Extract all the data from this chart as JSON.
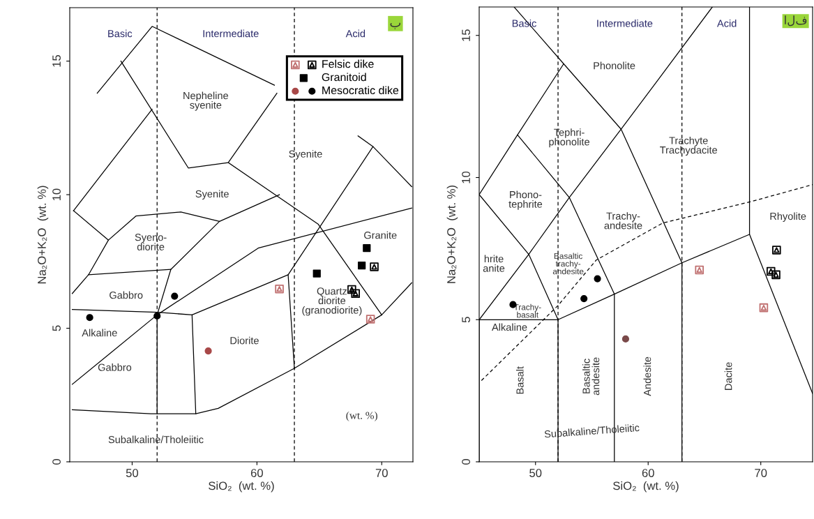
{
  "chart_data": [
    {
      "type": "scatter",
      "xlabel": "SiO₂  (wt. %)",
      "ylabel": "Na₂O+K₂O  (wt. %)",
      "xlim": [
        45,
        72.5
      ],
      "ylim": [
        0,
        17
      ],
      "xticks": [
        50,
        60,
        70
      ],
      "yticks": [
        0,
        5,
        10,
        15
      ],
      "grid": false,
      "legend": "top right",
      "ref_lines": [
        {
          "axis": "x",
          "value": 52,
          "color": "#000000",
          "line_style": "dashed"
        },
        {
          "axis": "x",
          "value": 63,
          "color": "#000000",
          "line_style": "dashed"
        }
      ],
      "annotations": [
        "Basic",
        "Intermediate",
        "Acid",
        "ب",
        "Nepheline\nsyenite",
        "Syenite",
        "Syenite",
        "Syeno-\ndiorite",
        "Gabbro",
        "Alkaline",
        "Gabbro",
        "Diorite",
        "Quartz\ndiorite\n(granodiorite)",
        "Granite",
        "(wt. %)",
        "Subalkaline/Tholeiitic"
      ],
      "series": [
        {
          "type": "line",
          "color": "#000000",
          "x": [
            47.2,
            51.6,
            61.4
          ],
          "values": [
            13.8,
            16.3,
            14.1
          ]
        },
        {
          "type": "line",
          "color": "#000000",
          "x": [
            49.1,
            54.5,
            57.7,
            61.6
          ],
          "values": [
            15.0,
            11.0,
            11.2,
            13.8
          ]
        },
        {
          "type": "line",
          "color": "#000000",
          "x": [
            45.3,
            51.6
          ],
          "values": [
            9.4,
            13.2
          ]
        },
        {
          "type": "line",
          "color": "#000000",
          "x": [
            45.3,
            48.1,
            46.5,
            45.2
          ],
          "values": [
            9.4,
            8.3,
            7.0,
            6.3
          ]
        },
        {
          "type": "line",
          "color": "#000000",
          "x": [
            48.1,
            50.3,
            53.9,
            57.0,
            61.8
          ],
          "values": [
            8.3,
            9.2,
            9.35,
            9.0,
            10.0
          ]
        },
        {
          "type": "line",
          "color": "#000000",
          "x": [
            57.7,
            64.9,
            70.0
          ],
          "values": [
            11.2,
            8.9,
            5.5
          ]
        },
        {
          "type": "line",
          "color": "#000000",
          "x": [
            46.5,
            53.1
          ],
          "values": [
            7.0,
            7.2
          ]
        },
        {
          "type": "line",
          "color": "#000000",
          "x": [
            52.0,
            53.1,
            57.0
          ],
          "values": [
            5.5,
            7.2,
            9.0
          ]
        },
        {
          "type": "line",
          "color": "#000000",
          "x": [
            45.2,
            52.0,
            54.8,
            62.5,
            63.0
          ],
          "values": [
            5.7,
            5.6,
            5.5,
            7.0,
            3.5
          ]
        },
        {
          "type": "line",
          "color": "#000000",
          "x": [
            62.5,
            69.3,
            72.4
          ],
          "values": [
            7.0,
            11.8,
            10.3
          ]
        },
        {
          "type": "line",
          "color": "#000000",
          "x": [
            68.1,
            69.3
          ],
          "values": [
            12.2,
            11.8
          ]
        },
        {
          "type": "line",
          "color": "#000000",
          "x": [
            45.2,
            52.0,
            60.1,
            72.4
          ],
          "values": [
            2.9,
            5.5,
            8.0,
            9.5
          ]
        },
        {
          "type": "line",
          "color": "#000000",
          "x": [
            52.0,
            52.0
          ],
          "values": [
            5.5,
            1.8
          ]
        },
        {
          "type": "line",
          "color": "#000000",
          "x": [
            54.8,
            55.1
          ],
          "values": [
            5.5,
            1.8
          ]
        },
        {
          "type": "line",
          "color": "#000000",
          "x": [
            45.2,
            51.5,
            55.1,
            56.9,
            63.0,
            70.0,
            72.4
          ],
          "values": [
            1.95,
            1.8,
            1.8,
            2.0,
            3.5,
            5.5,
            6.7
          ]
        },
        {
          "color": "#c07070",
          "marker": "triangle",
          "x": [
            61.8,
            69.1
          ],
          "values": [
            6.47,
            5.34
          ]
        },
        {
          "name": "Felsic dike",
          "color": "#000000",
          "marker": "triangle",
          "x": [
            69.4,
            67.6,
            67.9
          ],
          "values": [
            7.3,
            6.45,
            6.3
          ]
        },
        {
          "name": "Granitoid",
          "color": "#000000",
          "marker": "square",
          "x": [
            64.8,
            68.8,
            68.4
          ],
          "values": [
            7.05,
            8.0,
            7.35
          ]
        },
        {
          "color": "#a84848",
          "marker": "circle",
          "x": [
            56.1
          ],
          "values": [
            4.15
          ]
        },
        {
          "name": "Mesocratic dike",
          "color": "#000000",
          "marker": "circle",
          "x": [
            46.6,
            52.0,
            53.4
          ],
          "values": [
            5.4,
            5.46,
            6.2
          ]
        }
      ]
    },
    {
      "type": "scatter",
      "xlabel": "SiO₂  (wt. %)",
      "ylabel": "Na₂O+K₂O  (wt. %)",
      "xlim": [
        45,
        74.6
      ],
      "ylim": [
        0,
        16
      ],
      "xticks": [
        50,
        60,
        70
      ],
      "yticks": [
        0,
        5,
        10,
        15
      ],
      "grid": false,
      "ref_lines": [
        {
          "axis": "x",
          "value": 52,
          "color": "#000000",
          "line_style": "dashed"
        },
        {
          "axis": "x",
          "value": 63,
          "color": "#000000",
          "line_style": "dashed"
        }
      ],
      "annotations": [
        "Basic",
        "Intermediate",
        "Acid",
        "الف",
        "Phonolite",
        "Tephri-\nphonolite",
        "Trachyte\nTrachydacite",
        "Phono-\ntephrite",
        "Trachy-\nandesite",
        "Rhyolite",
        "hrite\nanite",
        "Basaltic\ntrachy-\nandesite",
        "Trachy-\nbasalt",
        "Alkaline",
        "Basalt",
        "Basaltic\nandesite",
        "Andesite",
        "Dacite",
        "Subalkaline/Tholeiitic"
      ],
      "series": [
        {
          "type": "line",
          "color": "#000000",
          "x": [
            45,
            49.4,
            53,
            57.6,
            61,
            65.7
          ],
          "values": [
            5,
            7.3,
            9.3,
            11.7,
            13.5,
            16
          ]
        },
        {
          "type": "line",
          "color": "#000000",
          "x": [
            45,
            49.4,
            52,
            52
          ],
          "values": [
            9.4,
            7.3,
            5,
            0
          ]
        },
        {
          "type": "line",
          "color": "#000000",
          "x": [
            45,
            48.4,
            52.5
          ],
          "values": [
            9.4,
            11.5,
            14
          ]
        },
        {
          "type": "line",
          "color": "#000000",
          "x": [
            48.4,
            53,
            57,
            57
          ],
          "values": [
            11.5,
            9.3,
            5.9,
            0
          ]
        },
        {
          "type": "line",
          "color": "#000000",
          "x": [
            48.1,
            52.5,
            57.6,
            63,
            63
          ],
          "values": [
            16,
            14,
            11.7,
            7,
            0
          ]
        },
        {
          "type": "line",
          "color": "#000000",
          "x": [
            45,
            45,
            52,
            57,
            63,
            69
          ],
          "values": [
            0,
            5,
            5,
            5.9,
            7,
            8
          ]
        },
        {
          "type": "line",
          "color": "#000000",
          "x": [
            69,
            69,
            74.6
          ],
          "values": [
            16,
            8,
            2.4
          ]
        },
        {
          "type": "line",
          "color": "#000000",
          "line_style": "dashed",
          "x": [
            45.2,
            52,
            55.4,
            61.3,
            69.2,
            74.6
          ],
          "values": [
            2.86,
            5.5,
            7.1,
            8.4,
            9.16,
            9.75
          ]
        },
        {
          "color": "#c07070",
          "marker": "triangle",
          "x": [
            64.55,
            70.26
          ],
          "values": [
            6.75,
            5.42
          ]
        },
        {
          "color": "#000000",
          "marker": "triangle",
          "x": [
            71.4,
            70.9,
            71.35
          ],
          "values": [
            7.45,
            6.7,
            6.58
          ]
        },
        {
          "color": "#7a4a4a",
          "marker": "circle",
          "x": [
            58.0
          ],
          "values": [
            4.32
          ]
        },
        {
          "color": "#000000",
          "marker": "circle",
          "x": [
            48.0,
            54.3,
            55.5
          ],
          "values": [
            5.53,
            5.74,
            6.44
          ]
        }
      ]
    }
  ]
}
